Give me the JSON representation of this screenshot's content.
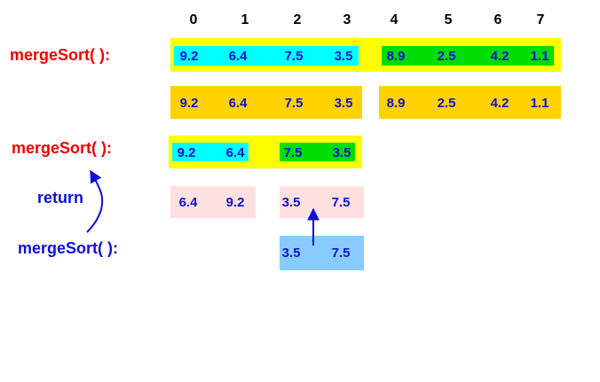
{
  "indices": [
    "0",
    "1",
    "2",
    "3",
    "4",
    "5",
    "6",
    "7"
  ],
  "labels": {
    "merge_sort_1": "mergeSort( ):",
    "merge_sort_2": "mergeSort( ):",
    "return": "return",
    "merge_sort_3": "mergeSort( ):"
  },
  "row1": [
    "9.2",
    "6.4",
    "7.5",
    "3.5",
    "8.9",
    "2.5",
    "4.2",
    "1.1"
  ],
  "row2": [
    "9.2",
    "6.4",
    "7.5",
    "3.5",
    "8.9",
    "2.5",
    "4.2",
    "1.1"
  ],
  "row3": [
    "9.2",
    "6.4",
    "7.5",
    "3.5"
  ],
  "row4": [
    "6.4",
    "9.2",
    "3.5",
    "7.5"
  ],
  "row5": [
    "3.5",
    "7.5"
  ],
  "colors": {
    "yellow": "#ffff00",
    "gold": "#ffd200",
    "cyan": "#00ffff",
    "green": "#00dd00",
    "pink": "#ffe0e0",
    "lightblue": "#88ccff",
    "red": "#ee0000",
    "blue": "#1010d0"
  }
}
